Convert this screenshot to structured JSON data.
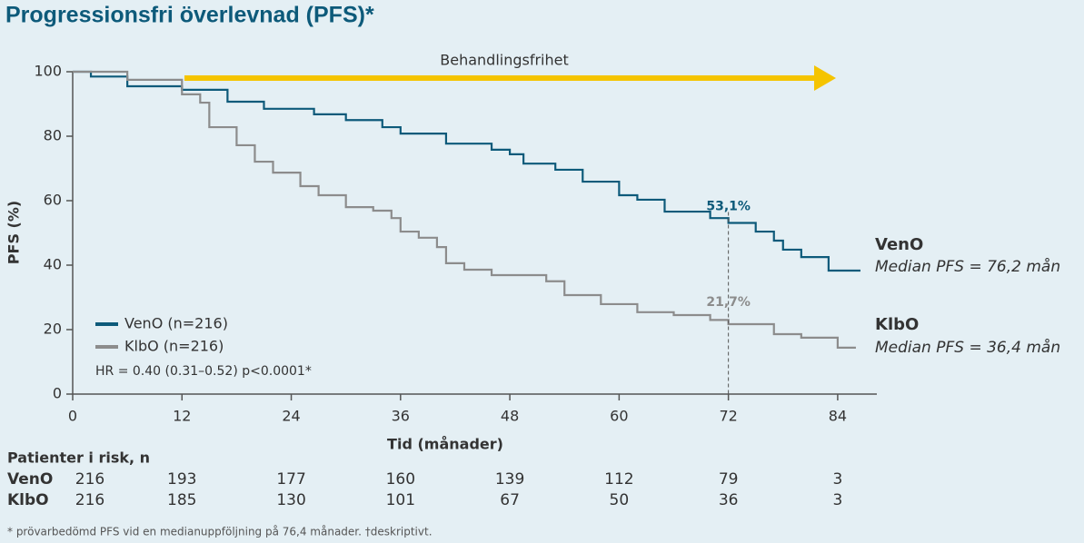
{
  "chart_data": {
    "type": "step",
    "title": "Progressionsfri överlevnad (PFS)*",
    "xlabel": "Tid (månader)",
    "ylabel": "PFS (%)",
    "xlim": [
      0,
      88
    ],
    "ylim": [
      0,
      100
    ],
    "xticks": [
      0,
      12,
      24,
      36,
      48,
      60,
      72,
      84
    ],
    "yticks": [
      0,
      20,
      40,
      60,
      80,
      100
    ],
    "series": [
      {
        "name": "VenO (n=216)",
        "color": "#0d5a7a",
        "x": [
          0,
          2,
          6,
          12,
          17,
          21,
          26.5,
          30,
          34,
          36,
          41,
          46,
          48,
          49.5,
          53,
          56,
          60,
          62,
          65,
          70,
          72,
          75,
          77,
          78,
          80,
          83,
          86.5
        ],
        "values": [
          100,
          98.5,
          95.5,
          94.4,
          90.7,
          88.5,
          86.8,
          85,
          82.8,
          80.8,
          77.7,
          75.8,
          74.4,
          71.5,
          69.6,
          65.9,
          61.7,
          60.3,
          56.6,
          54.6,
          53.1,
          50.4,
          47.6,
          44.8,
          42.5,
          38.3,
          38.3
        ]
      },
      {
        "name": "KlbO (n=216)",
        "color": "#8c8c8c",
        "x": [
          0,
          6,
          12,
          14,
          15,
          18,
          20,
          22,
          25,
          27,
          30,
          33,
          35,
          36,
          38,
          40,
          41,
          43,
          46,
          52,
          54,
          58,
          62,
          66,
          70,
          72,
          77,
          80,
          84,
          86
        ],
        "values": [
          100,
          97.5,
          93,
          90.4,
          82.8,
          77.2,
          72.1,
          68.7,
          64.5,
          61.7,
          58,
          56.9,
          54.6,
          50.4,
          48.5,
          45.6,
          40.6,
          38.6,
          36.9,
          35,
          30.7,
          27.9,
          25.4,
          24.5,
          23,
          21.7,
          18.6,
          17.5,
          14.4,
          14.4
        ]
      }
    ],
    "annotations": [
      {
        "text": "53,1%",
        "x": 72,
        "y": 53.1
      },
      {
        "text": "21,7%",
        "x": 72,
        "y": 21.7
      }
    ],
    "arrow_label": "Behandlingsfrihet",
    "hr_text": "HR = 0.40 (0.31–0.52) p<0.0001*",
    "right_labels": [
      {
        "name": "VenO",
        "median": "Median PFS = 76,2 mån"
      },
      {
        "name": "KlbO",
        "median": "Median PFS = 36,4 mån"
      }
    ]
  },
  "risk_table": {
    "header": "Patienter i risk, n",
    "rows": [
      {
        "label": "VenO",
        "values": [
          "216",
          "193",
          "177",
          "160",
          "139",
          "112",
          "79",
          "3"
        ]
      },
      {
        "label": "KlbO",
        "values": [
          "216",
          "185",
          "130",
          "101",
          "67",
          "50",
          "36",
          "3"
        ]
      }
    ]
  },
  "footnote": "* prövarbedömd PFS vid en medianuppföljning på 76,4 månader. †deskriptivt."
}
